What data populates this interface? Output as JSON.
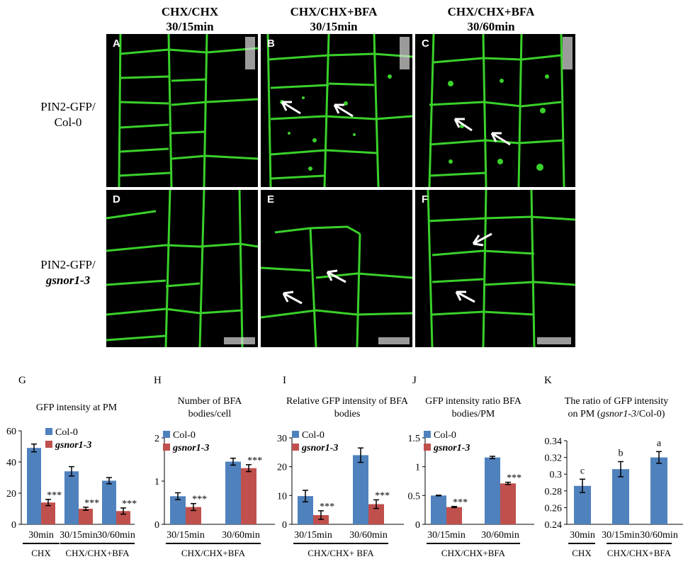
{
  "figure": {
    "column_titles": [
      {
        "line1": "CHX/CHX",
        "line2": "30/15min"
      },
      {
        "line1": "CHX/CHX+BFA",
        "line2": "30/15min"
      },
      {
        "line1": "CHX/CHX+BFA",
        "line2": "30/60min"
      }
    ],
    "row_labels": [
      {
        "line1": "PIN2-GFP/",
        "line2": "Col-0",
        "italic2": false
      },
      {
        "line1": "PIN2-GFP/",
        "line2": "gsnor1-3",
        "italic2": true
      }
    ],
    "panel_letters": [
      "A",
      "B",
      "C",
      "D",
      "E",
      "F"
    ],
    "chart_letters": [
      "G",
      "H",
      "I",
      "J",
      "K"
    ],
    "colors": {
      "col0": "#4f81bd",
      "gsnor": "#c0504d",
      "gfp": "#39d12a",
      "panel_bg": "#000000"
    }
  },
  "chart_data": [
    {
      "type": "bar",
      "title": "GFP intensity at PM",
      "categories": [
        "30min",
        "30/15min",
        "30/60min"
      ],
      "series": [
        {
          "name": "Col-0",
          "values": [
            49,
            34,
            28
          ],
          "errors": [
            2.5,
            3,
            2
          ]
        },
        {
          "name": "gsnor1-3",
          "values": [
            14,
            10,
            8.5
          ],
          "errors": [
            2,
            1,
            2
          ]
        }
      ],
      "ylim": [
        0,
        60
      ],
      "yticks": [
        "0",
        "20",
        "40",
        "60"
      ],
      "significance": [
        "***",
        "***",
        "***"
      ],
      "groups": [
        {
          "label": "CHX",
          "span": [
            0,
            0
          ]
        },
        {
          "label": "CHX/CHX+BFA",
          "span": [
            1,
            2
          ]
        }
      ],
      "legend": "top-right"
    },
    {
      "type": "bar",
      "title": "Number of BFA bodies/cell",
      "categories": [
        "30/15min",
        "30/60min"
      ],
      "series": [
        {
          "name": "Col-0",
          "values": [
            0.65,
            1.45
          ],
          "errors": [
            0.08,
            0.08
          ]
        },
        {
          "name": "gsnor1-3",
          "values": [
            0.4,
            1.3
          ],
          "errors": [
            0.08,
            0.08
          ]
        }
      ],
      "ylim": [
        0,
        2
      ],
      "yticks": [
        "0",
        "1",
        "2"
      ],
      "significance": [
        "***",
        "***"
      ],
      "groups": [
        {
          "label": "CHX/CHX+BFA",
          "span": [
            0,
            1
          ]
        }
      ],
      "legend": "top-left"
    },
    {
      "type": "bar",
      "title": "Relative GFP intensity of BFA bodies",
      "categories": [
        "30/15min",
        "30/60min"
      ],
      "series": [
        {
          "name": "Col-0",
          "values": [
            9.8,
            24
          ],
          "errors": [
            2,
            2.5
          ]
        },
        {
          "name": "gsnor1-3",
          "values": [
            3.2,
            7
          ],
          "errors": [
            1.5,
            1.5
          ]
        }
      ],
      "ylim": [
        0,
        30
      ],
      "yticks": [
        "0",
        "10",
        "20",
        "30"
      ],
      "significance": [
        "***",
        "***"
      ],
      "groups": [
        {
          "label": "CHX/CHX+ BFA",
          "span": [
            0,
            1
          ]
        }
      ],
      "legend": "top-left"
    },
    {
      "type": "bar",
      "title": "GFP intensity ratio BFA bodies/PM",
      "categories": [
        "30/15min",
        "30/60min"
      ],
      "series": [
        {
          "name": "Col-0",
          "values": [
            0.5,
            1.16
          ],
          "errors": [
            0.005,
            0.02
          ]
        },
        {
          "name": "gsnor1-3",
          "values": [
            0.3,
            0.71
          ],
          "errors": [
            0.01,
            0.02
          ]
        }
      ],
      "ylim": [
        0,
        1.5
      ],
      "yticks": [
        "0",
        "0.5",
        "1",
        "1.5"
      ],
      "significance": [
        "***",
        "***"
      ],
      "groups": [
        {
          "label": "CHX/CHX+BFA",
          "span": [
            0,
            1
          ]
        }
      ],
      "legend": "top-left"
    },
    {
      "type": "bar",
      "title": "The ratio of GFP intensity on PM (gsnor1-3/Col-0)",
      "categories": [
        "30min",
        "30/15min",
        "30/60min"
      ],
      "series": [
        {
          "name": "",
          "values": [
            0.286,
            0.306,
            0.32
          ],
          "errors": [
            0.008,
            0.009,
            0.007
          ]
        }
      ],
      "ylim": [
        0.24,
        0.34
      ],
      "yticks": [
        "0.24",
        "0.26",
        "0.28",
        "0.3",
        "0.32",
        "0.34"
      ],
      "significance": [
        "c",
        "b",
        "a"
      ],
      "groups": [
        {
          "label": "CHX",
          "span": [
            0,
            0
          ]
        },
        {
          "label": "CHX/CHX+BFA",
          "span": [
            1,
            2
          ]
        }
      ]
    }
  ]
}
